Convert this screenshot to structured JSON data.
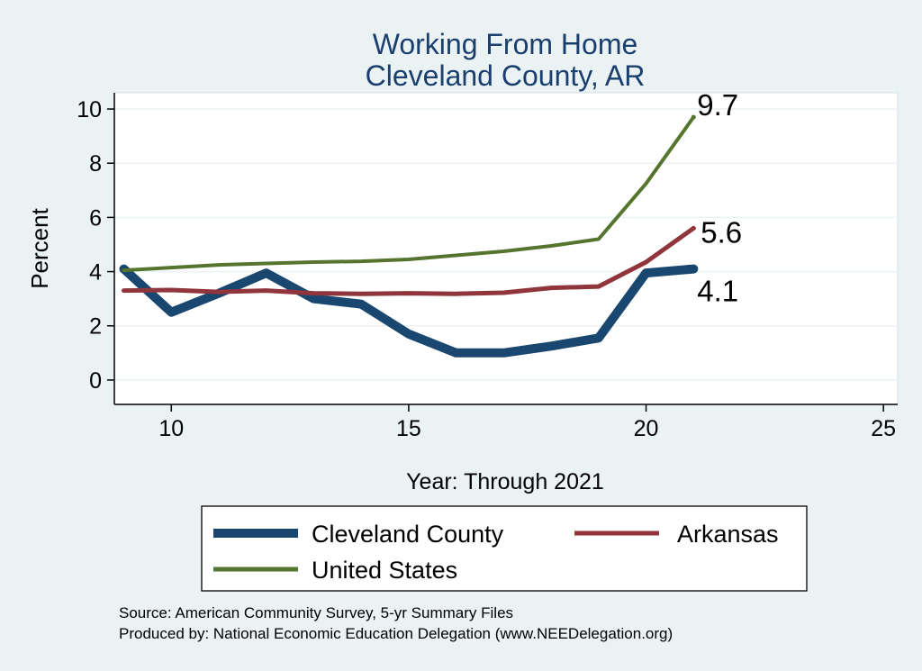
{
  "chart_data": {
    "type": "line",
    "title": [
      "Working From Home",
      "Cleveland County, AR"
    ],
    "xlabel": "Year: Through 2021",
    "ylabel": "Percent",
    "xlim": [
      8.8,
      25.3
    ],
    "ylim": [
      -0.9,
      10.6
    ],
    "xticks": [
      10,
      15,
      20,
      25
    ],
    "yticks": [
      0,
      2,
      4,
      6,
      8,
      10
    ],
    "grid": "horizontal",
    "legend_position": "bottom",
    "series": [
      {
        "name": "Cleveland County",
        "color": "#1a476f",
        "x": [
          9,
          10,
          11,
          12,
          13,
          14,
          15,
          16,
          17,
          18,
          19,
          20,
          21
        ],
        "values": [
          4.1,
          2.5,
          3.2,
          3.95,
          3.0,
          2.8,
          1.7,
          1.0,
          1.0,
          1.25,
          1.55,
          3.95,
          4.1
        ],
        "end_label": "4.1"
      },
      {
        "name": "Arkansas",
        "color": "#90353b",
        "x": [
          9,
          10,
          11,
          12,
          13,
          14,
          15,
          16,
          17,
          18,
          19,
          20,
          21
        ],
        "values": [
          3.3,
          3.32,
          3.25,
          3.3,
          3.2,
          3.18,
          3.2,
          3.18,
          3.22,
          3.4,
          3.45,
          4.35,
          5.6
        ],
        "end_label": "5.6"
      },
      {
        "name": "United States",
        "color": "#55752f",
        "x": [
          9,
          10,
          11,
          12,
          13,
          14,
          15,
          16,
          17,
          18,
          19,
          20,
          21
        ],
        "values": [
          4.05,
          4.15,
          4.25,
          4.3,
          4.35,
          4.38,
          4.45,
          4.6,
          4.75,
          4.95,
          5.2,
          7.25,
          9.7
        ],
        "end_label": "9.7"
      }
    ]
  },
  "footer": {
    "source": "Source: American Community Survey, 5-yr Summary Files",
    "produced": "Produced by: National Economic Education Delegation (www.NEEDelegation.org)"
  }
}
